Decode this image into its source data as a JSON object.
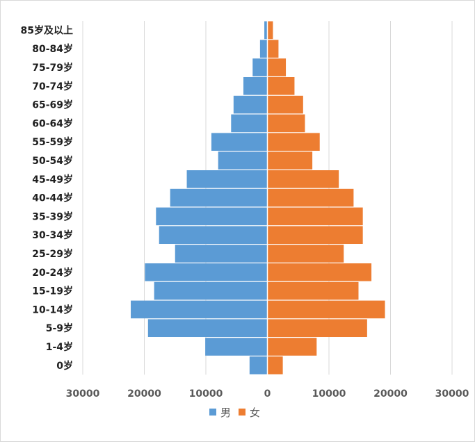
{
  "chart_data": {
    "type": "bar",
    "orientation": "horizontal-population-pyramid",
    "title": "",
    "xlabel": "",
    "ylabel": "",
    "xlim": [
      -30000,
      30000
    ],
    "x_ticks": [
      -30000,
      -20000,
      -10000,
      0,
      10000,
      20000,
      30000
    ],
    "x_tick_labels": [
      "30000",
      "20000",
      "10000",
      "0",
      "10000",
      "20000",
      "30000"
    ],
    "grid": "vertical",
    "legend_position": "bottom-center",
    "categories": [
      "0岁",
      "1-4岁",
      "5-9岁",
      "10-14岁",
      "15-19岁",
      "20-24岁",
      "25-29岁",
      "30-34岁",
      "35-39岁",
      "40-44岁",
      "45-49岁",
      "50-54岁",
      "55-59岁",
      "60-64岁",
      "65-69岁",
      "70-74岁",
      "75-79岁",
      "80-84岁",
      "85岁及以上"
    ],
    "series": [
      {
        "name": "男",
        "color": "#5B9BD5",
        "side": "left",
        "values": [
          2900,
          10100,
          19400,
          22200,
          18400,
          19900,
          15000,
          17600,
          18100,
          15800,
          13100,
          8000,
          9100,
          5900,
          5500,
          3900,
          2400,
          1200,
          500
        ]
      },
      {
        "name": "女",
        "color": "#ED7D31",
        "side": "right",
        "values": [
          2500,
          8000,
          16200,
          19100,
          14800,
          16900,
          12400,
          15500,
          15500,
          14000,
          11600,
          7300,
          8500,
          6100,
          5800,
          4400,
          3000,
          1800,
          900
        ]
      }
    ]
  }
}
